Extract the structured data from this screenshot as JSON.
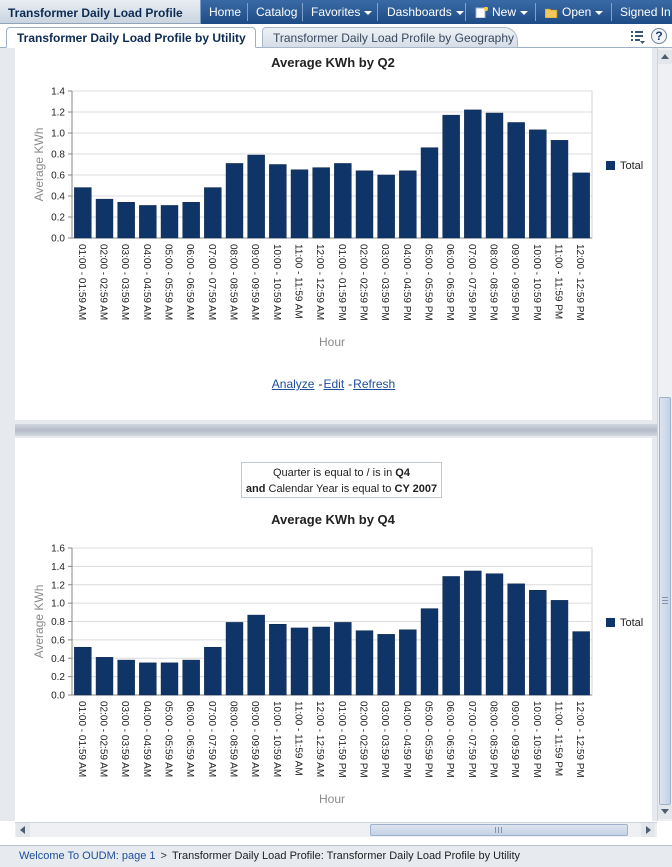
{
  "header": {
    "app_title": "Transformer Daily Load Profile",
    "nav": {
      "home": "Home",
      "catalog": "Catalog",
      "favorites": "Favorites",
      "dashboards": "Dashboards",
      "new": "New",
      "open": "Open",
      "signed_in": "Signed In A"
    }
  },
  "tabs": [
    {
      "label": "Transformer Daily Load Profile by Utility",
      "active": true
    },
    {
      "label": "Transformer Daily Load Profile by Geography",
      "active": false
    }
  ],
  "help_label": "?",
  "report_links": {
    "analyze": "Analyze",
    "edit": "Edit",
    "refresh": "Refresh",
    "separator": "-"
  },
  "filter": {
    "line1_prefix": "Quarter is equal to / is in",
    "line1_value": "Q4",
    "line2_and": "and",
    "line2_prefix": "Calendar Year is equal to",
    "line2_value": "CY 2007"
  },
  "chart_data": [
    {
      "type": "bar",
      "title": "Average KWh by Q2",
      "xlabel": "Hour",
      "ylabel": "Average KWh",
      "ylim": [
        0,
        1.4
      ],
      "yticks": [
        "0.0",
        "0.2",
        "0.4",
        "0.6",
        "0.8",
        "1.0",
        "1.2",
        "1.4"
      ],
      "grid": true,
      "legend_position": "right",
      "bar_color": "#0f3468",
      "categories": [
        "01:00 - 01:59 AM",
        "02:00 - 02:59 AM",
        "03:00 - 03:59 AM",
        "04:00 - 04:59 AM",
        "05:00 - 05:59 AM",
        "06:00 - 06:59 AM",
        "07:00 - 07:59 AM",
        "08:00 - 08:59 AM",
        "09:00 - 09:59 AM",
        "10:00 - 10:59 AM",
        "11:00 - 11:59 AM",
        "12:00 - 12:59 AM",
        "01:00 - 01:59 PM",
        "02:00 - 02:59 PM",
        "03:00 - 03:59 PM",
        "04:00 - 04:59 PM",
        "05:00 - 05:59 PM",
        "06:00 - 06:59 PM",
        "07:00 - 07:59 PM",
        "08:00 - 08:59 PM",
        "09:00 - 09:59 PM",
        "10:00 - 10:59 PM",
        "11:00 - 11:59 PM",
        "12:00 - 12:59 PM"
      ],
      "series": [
        {
          "name": "Total",
          "values": [
            0.48,
            0.37,
            0.34,
            0.31,
            0.31,
            0.34,
            0.48,
            0.71,
            0.79,
            0.7,
            0.65,
            0.67,
            0.71,
            0.64,
            0.6,
            0.64,
            0.86,
            1.17,
            1.22,
            1.19,
            1.1,
            1.03,
            0.93,
            0.62
          ]
        }
      ]
    },
    {
      "type": "bar",
      "title": "Average KWh by Q4",
      "xlabel": "Hour",
      "ylabel": "Average KWh",
      "ylim": [
        0,
        1.6
      ],
      "yticks": [
        "0.0",
        "0.2",
        "0.4",
        "0.6",
        "0.8",
        "1.0",
        "1.2",
        "1.4",
        "1.6"
      ],
      "grid": true,
      "legend_position": "right",
      "bar_color": "#0f3468",
      "categories": [
        "01:00 - 01:59 AM",
        "02:00 - 02:59 AM",
        "03:00 - 03:59 AM",
        "04:00 - 04:59 AM",
        "05:00 - 05:59 AM",
        "06:00 - 06:59 AM",
        "07:00 - 07:59 AM",
        "08:00 - 08:59 AM",
        "09:00 - 09:59 AM",
        "10:00 - 10:59 AM",
        "11:00 - 11:59 AM",
        "12:00 - 12:59 AM",
        "01:00 - 01:59 PM",
        "02:00 - 02:59 PM",
        "03:00 - 03:59 PM",
        "04:00 - 04:59 PM",
        "05:00 - 05:59 PM",
        "06:00 - 06:59 PM",
        "07:00 - 07:59 PM",
        "08:00 - 08:59 PM",
        "09:00 - 09:59 PM",
        "10:00 - 10:59 PM",
        "11:00 - 11:59 PM",
        "12:00 - 12:59 PM"
      ],
      "series": [
        {
          "name": "Total",
          "values": [
            0.52,
            0.41,
            0.38,
            0.35,
            0.35,
            0.38,
            0.52,
            0.79,
            0.87,
            0.77,
            0.73,
            0.74,
            0.79,
            0.7,
            0.66,
            0.71,
            0.94,
            1.29,
            1.35,
            1.32,
            1.21,
            1.14,
            1.03,
            0.69
          ]
        }
      ]
    }
  ],
  "breadcrumb": {
    "home_link": "Welcome To OUDM: page 1",
    "separator": ">",
    "current": "Transformer Daily Load Profile: Transformer Daily Load Profile by Utility"
  },
  "colors": {
    "nav_bg": "#1d4b86",
    "bar": "#0f3468",
    "link": "#1c4d9a"
  }
}
